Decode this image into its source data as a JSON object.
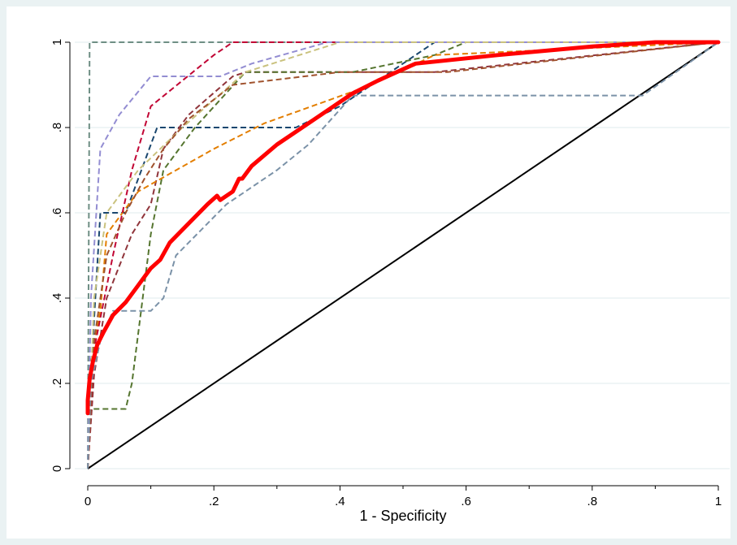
{
  "chart_data": {
    "type": "line",
    "title": "",
    "xlabel": "1 - Specificity",
    "ylabel": "",
    "xlim": [
      0,
      1
    ],
    "ylim": [
      0,
      1
    ],
    "xticks": [
      0,
      0.2,
      0.4,
      0.6,
      0.8,
      1
    ],
    "xtick_labels": [
      "0",
      ".2",
      ".4",
      ".6",
      ".8",
      "1"
    ],
    "yticks": [
      0,
      0.2,
      0.4,
      0.6,
      0.8,
      1
    ],
    "ytick_labels": [
      "0",
      ".2",
      ".4",
      ".6",
      ".8",
      "1"
    ],
    "grid": true,
    "reference_line": {
      "x": [
        0,
        1
      ],
      "y": [
        0,
        1
      ],
      "color": "#000000"
    },
    "series": [
      {
        "color": "#1a476f",
        "style": "dashed",
        "width": 2,
        "x": [
          0,
          0.01,
          0.02,
          0.06,
          0.11,
          0.12,
          0.33,
          0.4,
          0.55,
          1
        ],
        "y": [
          0,
          0.35,
          0.6,
          0.6,
          0.8,
          0.8,
          0.8,
          0.85,
          1,
          1
        ]
      },
      {
        "color": "#90353b",
        "style": "dashed",
        "width": 2,
        "x": [
          0,
          0.01,
          0.03,
          0.07,
          0.1,
          0.12,
          0.16,
          0.23,
          0.25,
          0.4,
          0.55,
          1
        ],
        "y": [
          0,
          0.22,
          0.4,
          0.55,
          0.62,
          0.75,
          0.83,
          0.92,
          0.93,
          0.93,
          0.93,
          1
        ]
      },
      {
        "color": "#55752f",
        "style": "dashed",
        "width": 2,
        "x": [
          0,
          0.005,
          0.06,
          0.07,
          0.1,
          0.12,
          0.17,
          0.25,
          0.42,
          0.55,
          0.6,
          1
        ],
        "y": [
          0,
          0.14,
          0.14,
          0.2,
          0.55,
          0.7,
          0.8,
          0.93,
          0.93,
          0.97,
          1,
          1
        ]
      },
      {
        "color": "#e37e00",
        "style": "dashed",
        "width": 2,
        "x": [
          0,
          0.005,
          0.02,
          0.03,
          0.08,
          0.2,
          0.28,
          0.45,
          0.55,
          1
        ],
        "y": [
          0,
          0.25,
          0.37,
          0.55,
          0.65,
          0.75,
          0.81,
          0.9,
          0.97,
          1
        ]
      },
      {
        "color": "#6e8e84",
        "style": "dashed",
        "width": 2,
        "x": [
          0,
          0.003,
          0.13,
          1
        ],
        "y": [
          0,
          1,
          1,
          1
        ]
      },
      {
        "color": "#c10534",
        "style": "dashed",
        "width": 2,
        "x": [
          0,
          0.01,
          0.04,
          0.07,
          0.1,
          0.2,
          0.23,
          0.4,
          1
        ],
        "y": [
          0,
          0.28,
          0.5,
          0.7,
          0.85,
          0.97,
          1,
          1,
          1
        ]
      },
      {
        "color": "#938dd2",
        "style": "dashed",
        "width": 2,
        "x": [
          0,
          0.005,
          0.02,
          0.05,
          0.1,
          0.21,
          0.26,
          0.38,
          1
        ],
        "y": [
          0,
          0.4,
          0.75,
          0.83,
          0.92,
          0.92,
          0.95,
          1,
          1
        ]
      },
      {
        "color": "#cac27e",
        "style": "dashed",
        "width": 2,
        "x": [
          0,
          0.01,
          0.03,
          0.08,
          0.15,
          0.25,
          0.4,
          1
        ],
        "y": [
          0,
          0.4,
          0.6,
          0.7,
          0.8,
          0.93,
          1,
          1
        ]
      },
      {
        "color": "#a0522d",
        "style": "dashed",
        "width": 2,
        "x": [
          0,
          0.01,
          0.03,
          0.06,
          0.09,
          0.12,
          0.16,
          0.23,
          0.4,
          0.5,
          0.57,
          1
        ],
        "y": [
          0,
          0.3,
          0.5,
          0.6,
          0.68,
          0.75,
          0.82,
          0.9,
          0.93,
          0.93,
          0.93,
          1
        ]
      },
      {
        "color": "#7b92a8",
        "style": "dashed",
        "width": 2,
        "x": [
          0,
          0.005,
          0.02,
          0.04,
          0.1,
          0.12,
          0.14,
          0.22,
          0.3,
          0.35,
          0.42,
          0.88,
          1
        ],
        "y": [
          0,
          0.2,
          0.3,
          0.37,
          0.37,
          0.4,
          0.5,
          0.62,
          0.7,
          0.76,
          0.875,
          0.875,
          1
        ]
      },
      {
        "color": "#ff0000",
        "style": "solid",
        "width": 5,
        "x": [
          0,
          0,
          0.003,
          0.008,
          0.015,
          0.025,
          0.04,
          0.06,
          0.08,
          0.095,
          0.1,
          0.115,
          0.13,
          0.15,
          0.17,
          0.19,
          0.205,
          0.21,
          0.23,
          0.24,
          0.245,
          0.26,
          0.3,
          0.35,
          0.39,
          0.42,
          0.46,
          0.52,
          0.65,
          0.8,
          0.9,
          1
        ],
        "y": [
          0.13,
          0.16,
          0.21,
          0.25,
          0.29,
          0.32,
          0.36,
          0.39,
          0.43,
          0.46,
          0.47,
          0.49,
          0.53,
          0.56,
          0.59,
          0.62,
          0.64,
          0.63,
          0.65,
          0.68,
          0.68,
          0.71,
          0.76,
          0.81,
          0.85,
          0.88,
          0.91,
          0.95,
          0.97,
          0.99,
          1,
          1
        ]
      }
    ]
  }
}
